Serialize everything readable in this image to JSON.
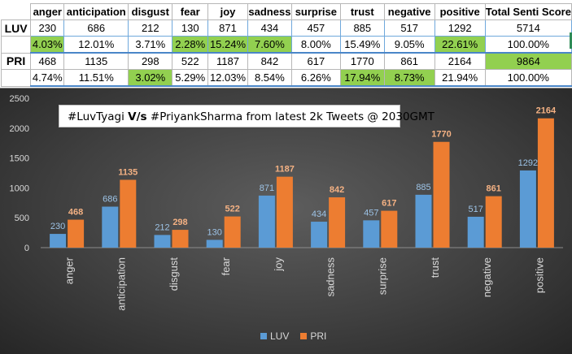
{
  "table": {
    "headers": [
      "anger",
      "anticipation",
      "disgust",
      "fear",
      "joy",
      "sadness",
      "surprise",
      "trust",
      "negative",
      "positive",
      "Total Senti Score"
    ],
    "rows": [
      {
        "label": "LUV",
        "counts": [
          "230",
          "686",
          "212",
          "130",
          "871",
          "434",
          "457",
          "885",
          "517",
          "1292",
          "5714"
        ],
        "percents": [
          "4.03%",
          "12.01%",
          "3.71%",
          "2.28%",
          "15.24%",
          "7.60%",
          "8.00%",
          "15.49%",
          "9.05%",
          "22.61%",
          "100.00%"
        ]
      },
      {
        "label": "PRI",
        "counts": [
          "468",
          "1135",
          "298",
          "522",
          "1187",
          "842",
          "617",
          "1770",
          "861",
          "2164",
          "9864"
        ],
        "percents": [
          "4.74%",
          "11.51%",
          "3.02%",
          "5.29%",
          "12.03%",
          "8.54%",
          "6.26%",
          "17.94%",
          "8.73%",
          "21.94%",
          "100.00%"
        ]
      }
    ],
    "highlight_color": "#92d050"
  },
  "chart_data": {
    "type": "bar",
    "title_parts": [
      "#LuvTyagi ",
      "V/s",
      " #PriyankSharma from latest 2k Tweets @ 2030GMT"
    ],
    "categories": [
      "anger",
      "anticipation",
      "disgust",
      "fear",
      "joy",
      "sadness",
      "surprise",
      "trust",
      "negative",
      "positive"
    ],
    "series": [
      {
        "name": "LUV",
        "color": "#5b9bd5",
        "label_color": "#9dc3e6",
        "values": [
          230,
          686,
          212,
          130,
          871,
          434,
          457,
          885,
          517,
          1292
        ]
      },
      {
        "name": "PRI",
        "color": "#ed7d31",
        "label_color": "#f4b183",
        "values": [
          468,
          1135,
          298,
          522,
          1187,
          842,
          617,
          1770,
          861,
          2164
        ]
      }
    ],
    "ylim": [
      0,
      2500
    ],
    "yticks": [
      "0",
      "500",
      "1000",
      "1500",
      "2000",
      "2500"
    ],
    "grid": false,
    "legend_position": "bottom"
  }
}
